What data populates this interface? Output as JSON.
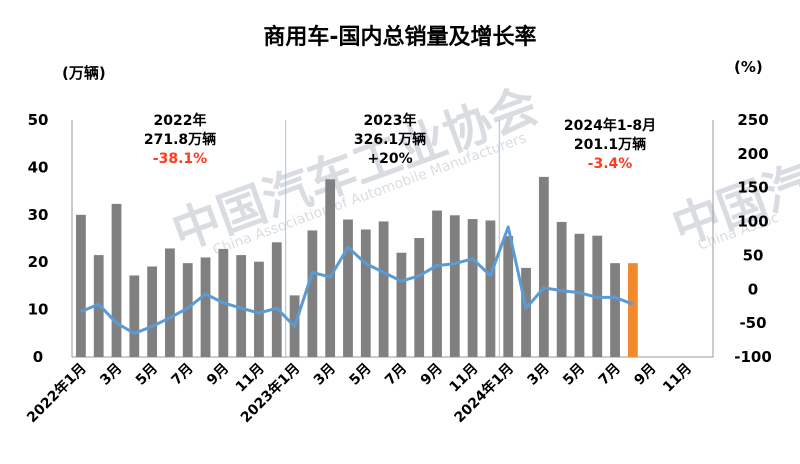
{
  "chart_data": {
    "type": "bar",
    "title": "商用车-国内总销量及增长率",
    "y_left_unit": "(万辆)",
    "y_right_unit": "(%)",
    "ylim_left": [
      0,
      50
    ],
    "ylim_right": [
      -100,
      250
    ],
    "yticks_left": [
      "0",
      "10",
      "20",
      "30",
      "40",
      "50"
    ],
    "yticks_right": [
      "-100",
      "-50",
      "0",
      "50",
      "100",
      "150",
      "200",
      "250"
    ],
    "x_labels": [
      "2022年1月",
      "3月",
      "5月",
      "7月",
      "9月",
      "11月",
      "2023年1月",
      "3月",
      "5月",
      "7月",
      "9月",
      "11月",
      "2024年1月",
      "3月",
      "5月",
      "7月",
      "9月",
      "11月"
    ],
    "months": 36,
    "series": [
      {
        "kind": "bar",
        "color": "#808080",
        "highlight_color": "#f28a2d",
        "highlight_index": 31,
        "values": [
          30,
          21.5,
          32.3,
          17.2,
          19.1,
          22.9,
          19.8,
          21,
          22.8,
          21.5,
          20.1,
          24.2,
          13,
          26.7,
          37.5,
          29,
          26.9,
          28.6,
          22,
          25.1,
          30.9,
          29.9,
          29.1,
          28.8,
          25.5,
          18.8,
          38,
          28.5,
          26,
          25.6,
          19.8,
          19.8
        ]
      },
      {
        "kind": "line",
        "axis": "right",
        "color": "#5b9bd5",
        "values": [
          -33,
          -22,
          -50,
          -65,
          -55,
          -42,
          -28,
          -7,
          -20,
          -28,
          -35,
          -28,
          -55,
          25,
          18,
          62,
          38,
          25,
          12,
          20,
          35,
          38,
          45,
          20,
          92,
          -28,
          2,
          -2,
          -5,
          -12,
          -12,
          -22
        ]
      }
    ],
    "annotations": [
      {
        "year": "2022年",
        "total": "271.8万辆",
        "growth": "-38.1%"
      },
      {
        "year": "2023年",
        "total": "326.1万辆",
        "growth": "+20%"
      },
      {
        "year": "2024年1-8月",
        "total": "201.1万辆",
        "growth": "-3.4%"
      }
    ],
    "watermark": {
      "text": "中国汽车工业协会",
      "sub": "China Association of Automobile Manufacturers",
      "short": "中国汽",
      "short_sub": "China Assoc"
    }
  }
}
